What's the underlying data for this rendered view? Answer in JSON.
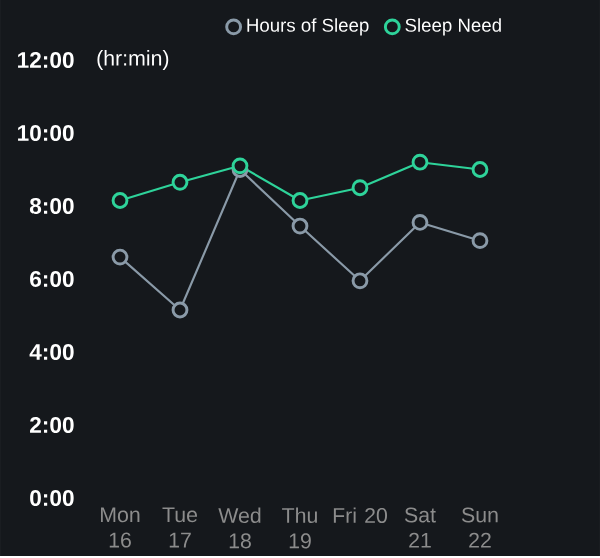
{
  "chart_data": {
    "type": "line",
    "ylabel": "(hr:min)",
    "categories": [
      "Mon 16",
      "Tue 17",
      "Wed 18",
      "Thu 19",
      "Fri 20",
      "Sat 21",
      "Sun 22"
    ],
    "series": [
      {
        "name": "Hours of Sleep",
        "color": "#8a9aa8",
        "values": [
          6.6,
          5.15,
          9.0,
          7.45,
          5.95,
          7.55,
          7.05
        ]
      },
      {
        "name": "Sleep Need",
        "color": "#2ed39a",
        "values": [
          8.15,
          8.65,
          9.1,
          8.15,
          8.5,
          9.2,
          9.0
        ]
      }
    ],
    "ylim": [
      0,
      12
    ],
    "yticks": [
      {
        "value": 0,
        "label": "0:00"
      },
      {
        "value": 2,
        "label": "2:00"
      },
      {
        "value": 4,
        "label": "4:00"
      },
      {
        "value": 6,
        "label": "6:00"
      },
      {
        "value": 8,
        "label": "8:00"
      },
      {
        "value": 10,
        "label": "10:00"
      },
      {
        "value": 12,
        "label": "12:00"
      }
    ],
    "legend": "top right",
    "marker": "circle",
    "line_style": "solid"
  }
}
